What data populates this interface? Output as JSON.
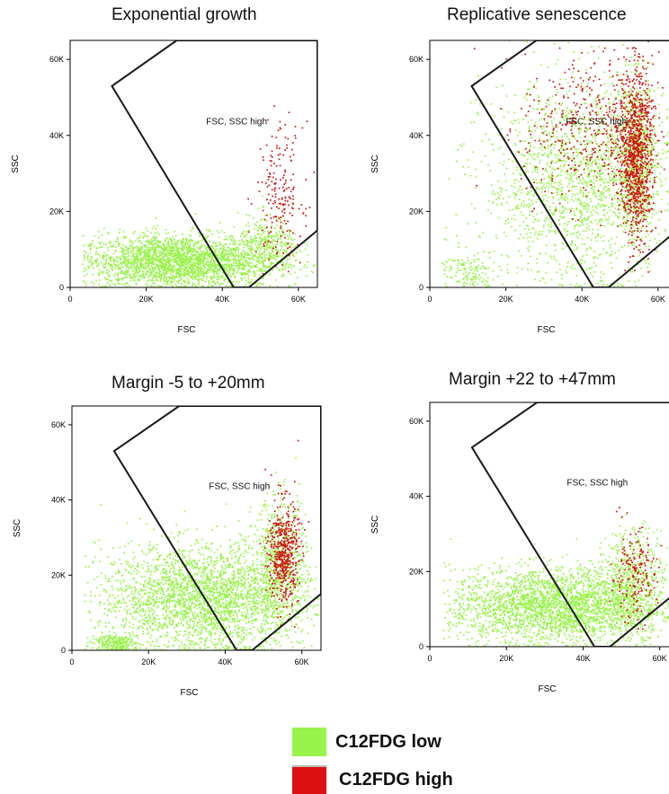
{
  "colors": {
    "low": "#98f34a",
    "high": "#cc1612",
    "gate": "#1a1a1a",
    "axis": "#000000"
  },
  "legend": [
    {
      "label": "C12FDG low",
      "color": "#98f34a"
    },
    {
      "label": "C12FDG high",
      "color": "#dd1111"
    }
  ],
  "chart_data": [
    {
      "type": "scatter",
      "title": "Exponential growth",
      "xlabel": "FSC",
      "ylabel": "SSC",
      "xlim": [
        0,
        65000
      ],
      "ylim": [
        0,
        65000
      ],
      "xticks": [
        "0",
        "20K",
        "40K",
        "60K"
      ],
      "yticks": [
        "0",
        "20K",
        "40K",
        "60K"
      ],
      "gate_label": "FSC, SSC high",
      "gate": [
        [
          11000,
          53000
        ],
        [
          43000,
          0
        ],
        [
          47000,
          0
        ],
        [
          65000,
          15000
        ],
        [
          65000,
          65000
        ],
        [
          28000,
          65000
        ]
      ],
      "series": [
        {
          "name": "C12FDG low",
          "clusters": [
            {
              "cx": 28000,
              "cy": 7000,
              "sx": 13000,
              "sy": 3500,
              "n": 2600
            },
            {
              "cx": 52000,
              "cy": 11000,
              "sx": 4000,
              "sy": 4000,
              "n": 300
            }
          ]
        },
        {
          "name": "C12FDG high",
          "clusters": [
            {
              "cx": 55000,
              "cy": 25000,
              "sx": 3000,
              "sy": 9000,
              "n": 200
            }
          ]
        }
      ]
    },
    {
      "type": "scatter",
      "title": "Replicative senescence",
      "xlabel": "FSC",
      "ylabel": "SSC",
      "xlim": [
        0,
        65000
      ],
      "ylim": [
        0,
        65000
      ],
      "xticks": [
        "0",
        "20K",
        "40K",
        "60K"
      ],
      "yticks": [
        "0",
        "20K",
        "40K",
        "60K"
      ],
      "gate_label": "FSC, SSC high",
      "gate": [
        [
          11000,
          53000
        ],
        [
          43000,
          0
        ],
        [
          47000,
          0
        ],
        [
          65000,
          15000
        ],
        [
          65000,
          65000
        ],
        [
          28000,
          65000
        ]
      ],
      "series": [
        {
          "name": "C12FDG low",
          "clusters": [
            {
              "cx": 40000,
              "cy": 28000,
              "sx": 13000,
              "sy": 13000,
              "n": 1800
            },
            {
              "cx": 54000,
              "cy": 35000,
              "sx": 2500,
              "sy": 10000,
              "n": 600
            },
            {
              "cx": 10000,
              "cy": 4000,
              "sx": 4000,
              "sy": 3000,
              "n": 150
            }
          ]
        },
        {
          "name": "C12FDG high",
          "clusters": [
            {
              "cx": 54000,
              "cy": 35000,
              "sx": 2200,
              "sy": 11000,
              "n": 1000
            },
            {
              "cx": 42000,
              "cy": 42000,
              "sx": 9000,
              "sy": 10000,
              "n": 450
            }
          ]
        }
      ]
    },
    {
      "type": "scatter",
      "title": "Margin -5 to +20mm",
      "xlabel": "FSC",
      "ylabel": "SSC",
      "xlim": [
        0,
        65000
      ],
      "ylim": [
        0,
        65000
      ],
      "xticks": [
        "0",
        "20K",
        "40K",
        "60K"
      ],
      "yticks": [
        "0",
        "20K",
        "40K",
        "60K"
      ],
      "gate_label": "FSC, SSC high",
      "gate": [
        [
          11000,
          53000
        ],
        [
          43000,
          0
        ],
        [
          47000,
          0
        ],
        [
          65000,
          15000
        ],
        [
          65000,
          65000
        ],
        [
          28000,
          65000
        ]
      ],
      "series": [
        {
          "name": "C12FDG low",
          "clusters": [
            {
              "cx": 35000,
              "cy": 14000,
              "sx": 14000,
              "sy": 7000,
              "n": 2800
            },
            {
              "cx": 54000,
              "cy": 25000,
              "sx": 3500,
              "sy": 8000,
              "n": 500
            },
            {
              "cx": 11000,
              "cy": 2000,
              "sx": 3000,
              "sy": 1200,
              "n": 250
            }
          ]
        },
        {
          "name": "C12FDG high",
          "clusters": [
            {
              "cx": 55000,
              "cy": 26000,
              "sx": 2000,
              "sy": 7000,
              "n": 500
            }
          ]
        }
      ]
    },
    {
      "type": "scatter",
      "title": "Margin +22 to +47mm",
      "xlabel": "FSC",
      "ylabel": "SSC",
      "xlim": [
        0,
        65000
      ],
      "ylim": [
        0,
        65000
      ],
      "xticks": [
        "0",
        "20K",
        "40K",
        "60K"
      ],
      "yticks": [
        "0",
        "20K",
        "40K",
        "60K"
      ],
      "gate_label": "FSC, SSC high",
      "gate": [
        [
          11000,
          53000
        ],
        [
          43000,
          0
        ],
        [
          47000,
          0
        ],
        [
          65000,
          15000
        ],
        [
          65000,
          65000
        ],
        [
          28000,
          65000
        ]
      ],
      "series": [
        {
          "name": "C12FDG low",
          "clusters": [
            {
              "cx": 33000,
              "cy": 11000,
              "sx": 14000,
              "sy": 5000,
              "n": 2800
            },
            {
              "cx": 53000,
              "cy": 18000,
              "sx": 4000,
              "sy": 7000,
              "n": 500
            }
          ]
        },
        {
          "name": "C12FDG high",
          "clusters": [
            {
              "cx": 53000,
              "cy": 19000,
              "sx": 3000,
              "sy": 6000,
              "n": 180
            }
          ]
        }
      ]
    }
  ]
}
